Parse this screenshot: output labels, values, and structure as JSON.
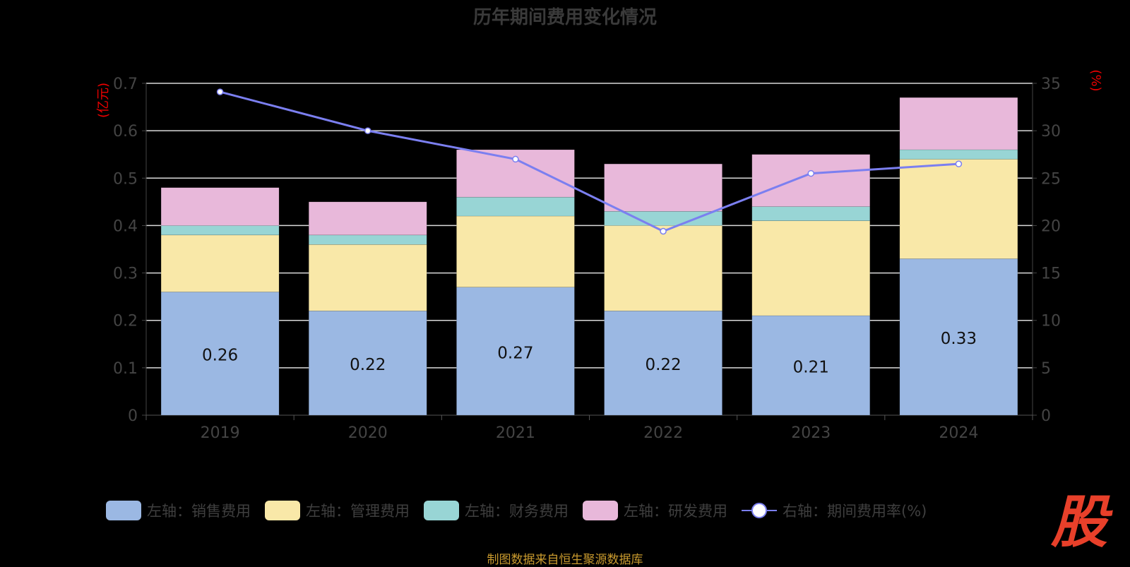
{
  "chart_data": {
    "type": "bar",
    "title": "历年期间费用变化情况",
    "categories": [
      "2019",
      "2020",
      "2021",
      "2022",
      "2023",
      "2024"
    ],
    "series": [
      {
        "name": "左轴：销售费用",
        "axis": "left",
        "color": "#9bb8e3",
        "values": [
          0.26,
          0.22,
          0.27,
          0.22,
          0.21,
          0.33
        ],
        "labels": [
          "0.26",
          "0.22",
          "0.27",
          "0.22",
          "0.21",
          "0.33"
        ]
      },
      {
        "name": "左轴：管理费用",
        "axis": "left",
        "color": "#f9e8a8",
        "values": [
          0.12,
          0.14,
          0.15,
          0.18,
          0.2,
          0.21
        ]
      },
      {
        "name": "左轴：财务费用",
        "axis": "left",
        "color": "#98d5d5",
        "values": [
          0.02,
          0.02,
          0.04,
          0.03,
          0.03,
          0.02
        ]
      },
      {
        "name": "左轴：研发费用",
        "axis": "left",
        "color": "#e8b8da",
        "values": [
          0.08,
          0.07,
          0.1,
          0.1,
          0.11,
          0.11
        ]
      },
      {
        "name": "右轴：期间费用率(%)",
        "axis": "right",
        "type": "line",
        "color": "#7b7ff0",
        "values": [
          34.1,
          30.0,
          27.0,
          19.4,
          25.5,
          26.5
        ]
      }
    ],
    "left_axis": {
      "label": "(亿元)",
      "ylim": [
        0,
        0.7
      ],
      "ticks": [
        "0",
        "0.1",
        "0.2",
        "0.3",
        "0.4",
        "0.5",
        "0.6",
        "0.7"
      ]
    },
    "right_axis": {
      "label": "(%)",
      "ylim": [
        0,
        35
      ],
      "ticks": [
        "0",
        "5",
        "10",
        "15",
        "20",
        "25",
        "30",
        "35"
      ]
    },
    "grid": true,
    "legend": "bottom"
  },
  "source": "制图数据来自恒生聚源数据库",
  "logo": "股"
}
